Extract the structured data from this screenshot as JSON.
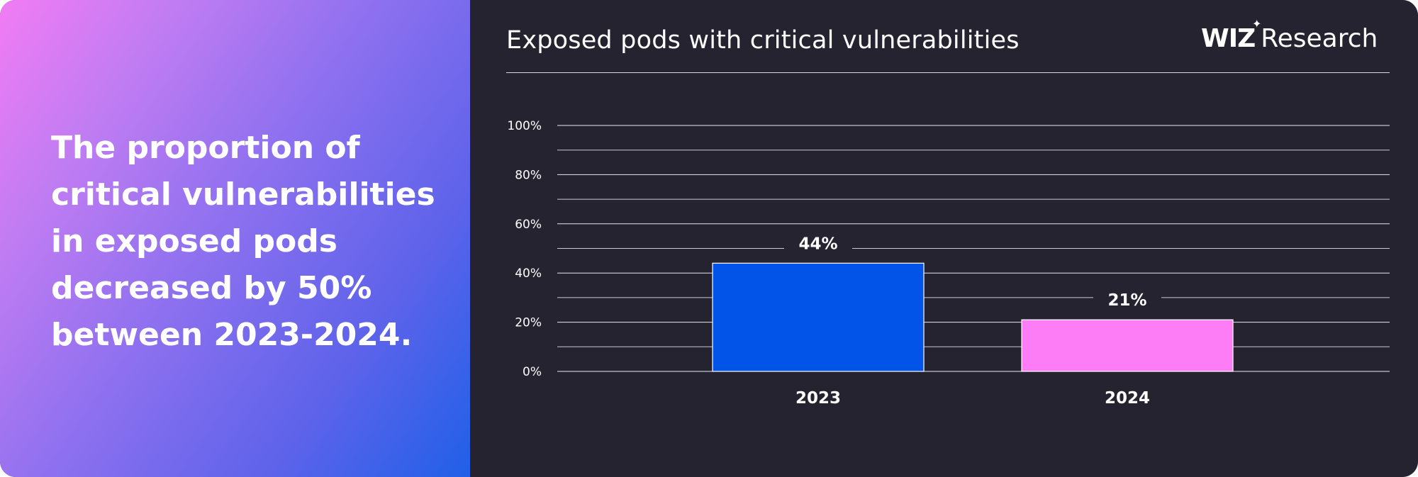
{
  "headline": "The proportion of critical vulnerabilities in exposed pods decreased by 50% between 2023-2024.",
  "brand": {
    "logo": "WIZ",
    "sparkle": "✦",
    "name": "Research"
  },
  "colors": {
    "panel_bg": "#24232f",
    "grid": "#e8e8ee",
    "text": "#ffffff",
    "bar_2023": "#0254e8",
    "bar_2024": "#fd7df7"
  },
  "chart_data": {
    "type": "bar",
    "title": "Exposed pods with critical vulnerabilities",
    "categories": [
      "2023",
      "2024"
    ],
    "values": [
      44,
      21
    ],
    "value_labels": [
      "44%",
      "21%"
    ],
    "bar_colors": [
      "#0254e8",
      "#fd7df7"
    ],
    "y_ticks": [
      0,
      20,
      40,
      60,
      80,
      100
    ],
    "y_tick_labels": [
      "0%",
      "20%",
      "40%",
      "60%",
      "80%",
      "100%"
    ],
    "ylim": [
      0,
      100
    ],
    "minor_gridlines": [
      10,
      30,
      50,
      70,
      90
    ],
    "grid": true,
    "legend": "none",
    "xlabel": "",
    "ylabel": ""
  }
}
